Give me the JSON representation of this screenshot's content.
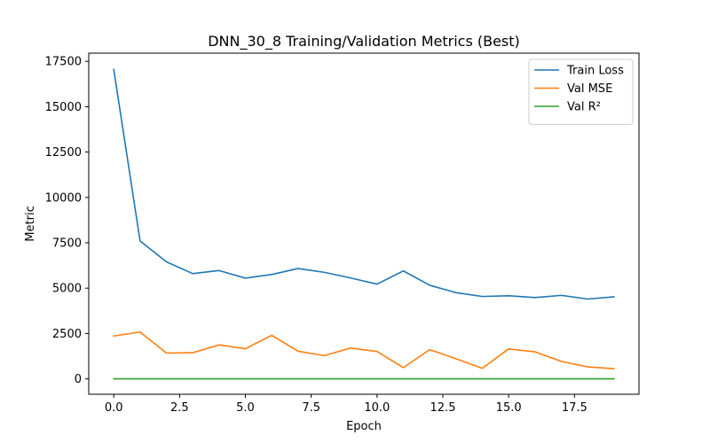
{
  "chart_data": {
    "type": "line",
    "title": "DNN_30_8 Training/Validation Metrics (Best)",
    "xlabel": "Epoch",
    "ylabel": "Metric",
    "xlim": [
      -0.95,
      19.95
    ],
    "ylim": [
      -850,
      17950
    ],
    "x_ticks": [
      0.0,
      2.5,
      5.0,
      7.5,
      10.0,
      12.5,
      15.0,
      17.5
    ],
    "x_tick_labels": [
      "0.0",
      "2.5",
      "5.0",
      "7.5",
      "10.0",
      "12.5",
      "15.0",
      "17.5"
    ],
    "y_ticks": [
      0,
      2500,
      5000,
      7500,
      10000,
      12500,
      15000,
      17500
    ],
    "y_tick_labels": [
      "0",
      "2500",
      "5000",
      "7500",
      "10000",
      "12500",
      "15000",
      "17500"
    ],
    "grid": false,
    "legend_position": "upper right",
    "x": [
      0,
      1,
      2,
      3,
      4,
      5,
      6,
      7,
      8,
      9,
      10,
      11,
      12,
      13,
      14,
      15,
      16,
      17,
      18,
      19
    ],
    "series": [
      {
        "name": "Train Loss",
        "color": "#1f77b4",
        "values": [
          17050,
          7600,
          6450,
          5800,
          5970,
          5550,
          5750,
          6080,
          5870,
          5560,
          5220,
          5950,
          5160,
          4750,
          4540,
          4580,
          4480,
          4600,
          4400,
          4520
        ]
      },
      {
        "name": "Val MSE",
        "color": "#ff7f0e",
        "values": [
          2360,
          2580,
          1420,
          1440,
          1870,
          1660,
          2400,
          1520,
          1280,
          1700,
          1510,
          620,
          1610,
          1110,
          580,
          1650,
          1490,
          960,
          660,
          560
        ]
      },
      {
        "name": "Val R²",
        "color": "#2ca02c",
        "values": [
          0.6,
          0.6,
          0.7,
          0.7,
          0.6,
          0.6,
          0.5,
          0.6,
          0.7,
          0.6,
          0.6,
          0.8,
          0.6,
          0.7,
          0.8,
          0.6,
          0.6,
          0.7,
          0.8,
          0.8
        ]
      }
    ]
  }
}
